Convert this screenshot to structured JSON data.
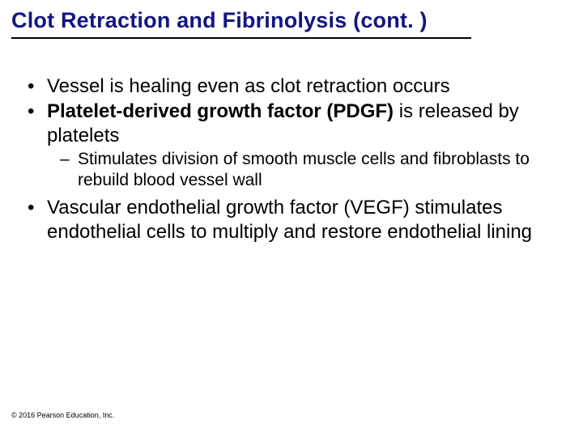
{
  "title": "Clot Retraction and Fibrinolysis (cont. )",
  "colors": {
    "title_color": "#13167f",
    "underline_color": "#000000",
    "text_color": "#000000",
    "background": "#ffffff"
  },
  "typography": {
    "title_fontsize": 27,
    "title_weight": "bold",
    "bullet_fontsize": 24,
    "sub_fontsize": 21,
    "copyright_fontsize": 9,
    "font_family": "Arial"
  },
  "bullets": [
    {
      "text": "Vessel is healing even as clot retraction occurs"
    },
    {
      "prefix": "Platelet-derived growth factor (PDGF)",
      "suffix": " is released by platelets",
      "sub": "Stimulates division of smooth muscle cells and fibroblasts to rebuild blood vessel wall"
    },
    {
      "text": "Vascular endothelial growth factor (VEGF) stimulates endothelial cells to multiply and restore endothelial lining"
    }
  ],
  "copyright": "© 2016 Pearson Education, Inc."
}
